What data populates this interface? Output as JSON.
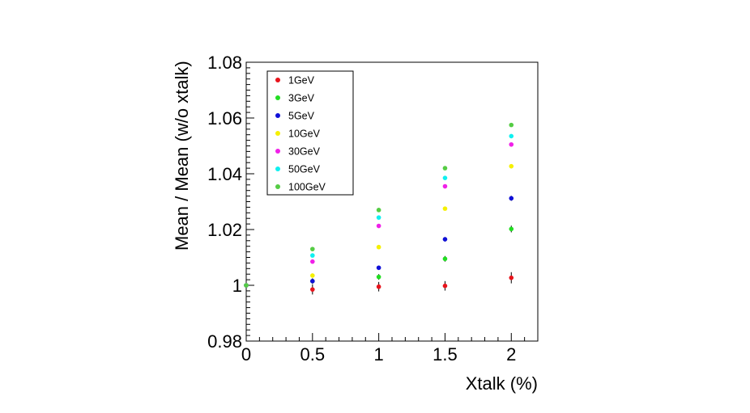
{
  "chart_data": {
    "type": "scatter",
    "xlabel": "Xtalk (%)",
    "ylabel": "Mean / Mean (w/o xtalk)",
    "xlim": [
      0,
      2.2
    ],
    "ylim": [
      0.98,
      1.08
    ],
    "x_ticks": [
      "0",
      "0.5",
      "1",
      "1.5",
      "2"
    ],
    "y_ticks": [
      "0.98",
      "1",
      "1.02",
      "1.04",
      "1.06",
      "1.08"
    ],
    "grid": false,
    "legend_position": "top-left",
    "series": [
      {
        "name": "1GeV",
        "color": "#e8141c",
        "x": [
          0,
          0.5,
          1,
          1.5,
          2
        ],
        "y": [
          1.0,
          0.9985,
          0.9995,
          0.9998,
          1.0027
        ],
        "err": [
          0,
          0.0018,
          0.0017,
          0.0017,
          0.002
        ]
      },
      {
        "name": "3GeV",
        "color": "#22dd22",
        "x": [
          0,
          0.5,
          1,
          1.5,
          2
        ],
        "y": [
          1.0,
          1.0015,
          1.003,
          1.0095,
          1.0202
        ],
        "err": [
          0,
          0.001,
          0.001,
          0.001,
          0.0012
        ]
      },
      {
        "name": "5GeV",
        "color": "#1010d8",
        "x": [
          0,
          0.5,
          1,
          1.5,
          2
        ],
        "y": [
          1.0,
          1.0015,
          1.0063,
          1.0165,
          1.0312
        ],
        "err": [
          0,
          0.0008,
          0.0008,
          0.0008,
          0.0009
        ]
      },
      {
        "name": "10GeV",
        "color": "#f5f000",
        "x": [
          0,
          0.5,
          1,
          1.5,
          2
        ],
        "y": [
          1.0,
          1.0035,
          1.0137,
          1.0275,
          1.0427
        ],
        "err": [
          0,
          0.0006,
          0.0006,
          0.0006,
          0.0007
        ]
      },
      {
        "name": "30GeV",
        "color": "#f020e8",
        "x": [
          0,
          0.5,
          1,
          1.5,
          2
        ],
        "y": [
          1.0,
          1.0085,
          1.0213,
          1.0355,
          1.0505
        ],
        "err": [
          0,
          0.0004,
          0.0004,
          0.0004,
          0.0005
        ]
      },
      {
        "name": "50GeV",
        "color": "#10f0f0",
        "x": [
          0,
          0.5,
          1,
          1.5,
          2
        ],
        "y": [
          1.0,
          1.0107,
          1.0243,
          1.0385,
          1.0535
        ],
        "err": [
          0,
          0.0003,
          0.0003,
          0.0003,
          0.0004
        ]
      },
      {
        "name": "100GeV",
        "color": "#55cc44",
        "x": [
          0,
          0.5,
          1,
          1.5,
          2
        ],
        "y": [
          1.0,
          1.013,
          1.027,
          1.042,
          1.0575
        ],
        "err": [
          0,
          0.0003,
          0.0003,
          0.0003,
          0.0003
        ]
      }
    ]
  }
}
